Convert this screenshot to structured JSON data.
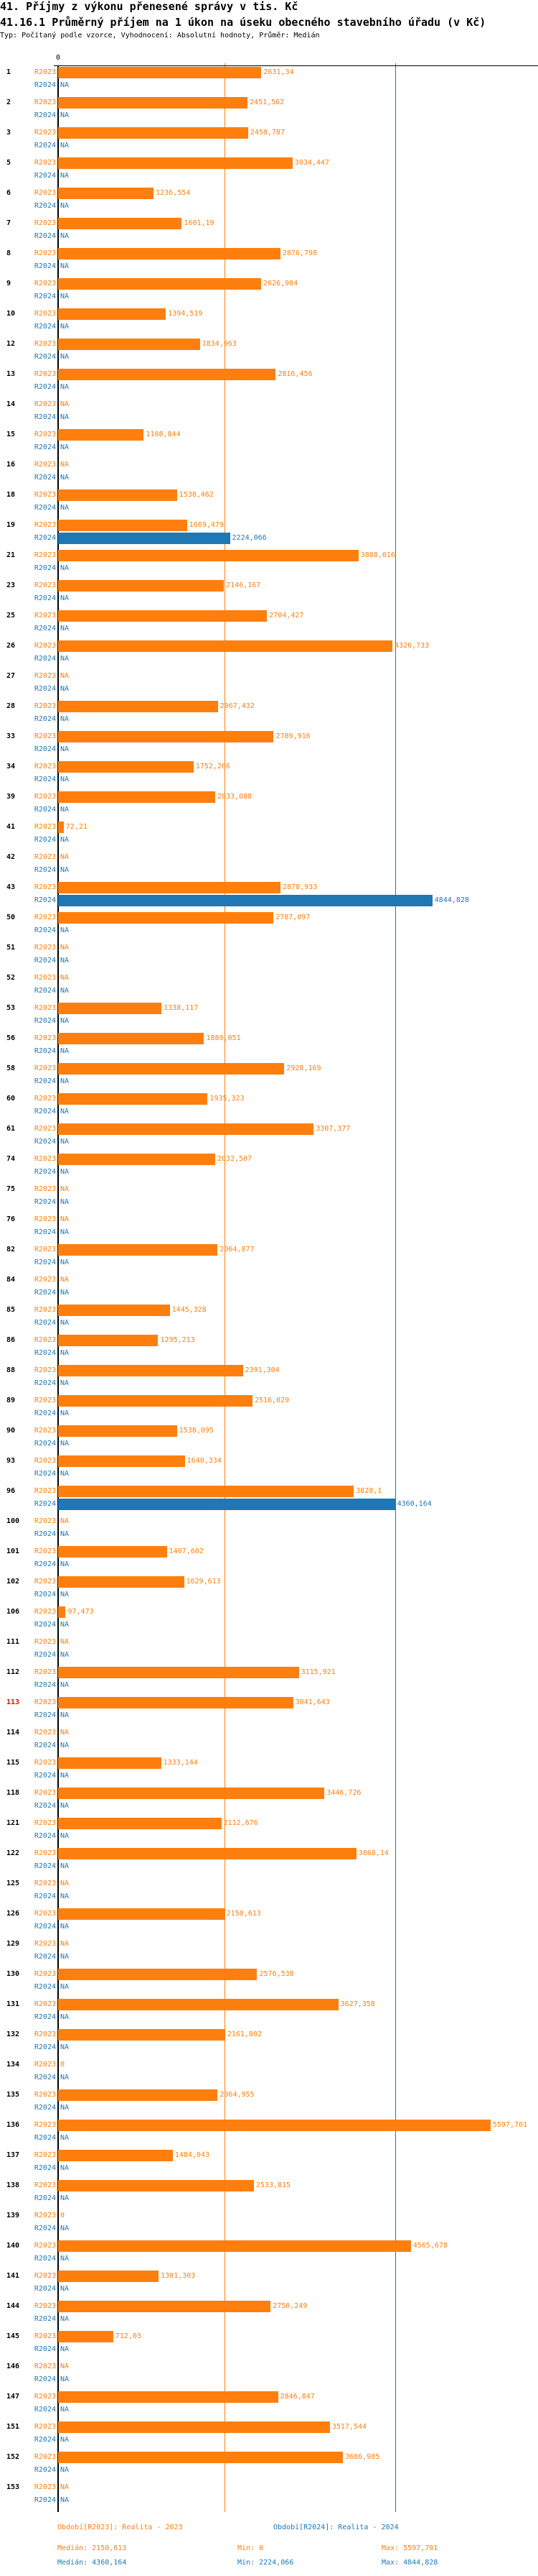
{
  "title": "41. Příjmy z výkonu přenesené správy v tis. Kč",
  "subtitle": "41.16.1 Průměrný příjem na 1 úkon na úseku obecného stavebního úřadu (v Kč)",
  "description": "Typ: Počítaný podle vzorce, Vyhodnocení: Absolutní hodnoty, Průměr: Medián",
  "colors": {
    "R2023": "#ff7f0e",
    "R2024": "#1f77b4",
    "highlight_label": "#ff0000"
  },
  "chart_data": {
    "type": "bar",
    "orientation": "horizontal",
    "x_tick_labels": [
      "0"
    ],
    "grid": false,
    "highlighted_category": "113",
    "reference_lines": [
      {
        "series": "R2023",
        "statistic": "median",
        "value": 2150.613
      },
      {
        "series": "R2024",
        "statistic": "median",
        "value": 4360.164
      }
    ],
    "categories": [
      "1",
      "2",
      "3",
      "5",
      "6",
      "7",
      "8",
      "9",
      "10",
      "12",
      "13",
      "14",
      "15",
      "16",
      "18",
      "19",
      "21",
      "23",
      "25",
      "26",
      "27",
      "28",
      "33",
      "34",
      "39",
      "41",
      "42",
      "43",
      "50",
      "51",
      "52",
      "53",
      "56",
      "58",
      "60",
      "61",
      "74",
      "75",
      "76",
      "82",
      "84",
      "85",
      "86",
      "88",
      "89",
      "90",
      "93",
      "96",
      "100",
      "101",
      "102",
      "106",
      "111",
      "112",
      "113",
      "114",
      "115",
      "118",
      "121",
      "122",
      "125",
      "126",
      "129",
      "130",
      "131",
      "132",
      "134",
      "135",
      "136",
      "137",
      "138",
      "139",
      "140",
      "141",
      "144",
      "145",
      "146",
      "147",
      "151",
      "152",
      "153"
    ],
    "series": [
      {
        "name": "R2023",
        "values": [
          2631.34,
          2451.562,
          2458.787,
          3034.447,
          1236.554,
          1601.19,
          2876.798,
          2626.984,
          1394.519,
          1834.963,
          2816.456,
          null,
          1108.844,
          null,
          1538.462,
          1669.479,
          3888.016,
          2146.167,
          2704.427,
          4326.733,
          null,
          2067.432,
          2789.916,
          1752.266,
          2033.088,
          72.21,
          null,
          2878.933,
          2787.097,
          null,
          null,
          1338.117,
          1889.051,
          2928.169,
          1935.323,
          3307.377,
          2032.507,
          null,
          null,
          2064.877,
          null,
          1445.328,
          1295.213,
          2391.304,
          2516.029,
          1538.095,
          1640.334,
          3828.1,
          null,
          1407.602,
          1629.613,
          97.473,
          null,
          3115.921,
          3041.643,
          null,
          1333.144,
          3446.726,
          2112.676,
          3860.14,
          null,
          2150.613,
          null,
          2576.538,
          3627.358,
          2161.802,
          0,
          2064.955,
          5597.701,
          1484.043,
          2533.815,
          0,
          4565.678,
          1301.303,
          2750.249,
          712.03,
          null,
          2846.847,
          3517.544,
          3686.985,
          null
        ]
      },
      {
        "name": "R2024",
        "values": [
          null,
          null,
          null,
          null,
          null,
          null,
          null,
          null,
          null,
          null,
          null,
          null,
          null,
          null,
          null,
          2224.066,
          null,
          null,
          null,
          null,
          null,
          null,
          null,
          null,
          null,
          null,
          null,
          4844.828,
          null,
          null,
          null,
          null,
          null,
          null,
          null,
          null,
          null,
          null,
          null,
          null,
          null,
          null,
          null,
          null,
          null,
          null,
          null,
          4360.164,
          null,
          null,
          null,
          null,
          null,
          null,
          null,
          null,
          null,
          null,
          null,
          null,
          null,
          null,
          null,
          null,
          null,
          null,
          null,
          null,
          null,
          null,
          null,
          null,
          null,
          null,
          null,
          null,
          null,
          null,
          null,
          null,
          null
        ]
      }
    ],
    "na_label": "NA"
  },
  "legend": {
    "r2023": "Období[R2023]: Realita - 2023",
    "r2024": "Období[R2024]: Realita - 2024"
  },
  "stats": {
    "r2023": {
      "median": "Medián: 2150,613",
      "min": "Min: 0",
      "max": "Max: 5597,701"
    },
    "r2024": {
      "median": "Medián: 4360,164",
      "min": "Min: 2224,066",
      "max": "Max: 4844,828"
    }
  }
}
